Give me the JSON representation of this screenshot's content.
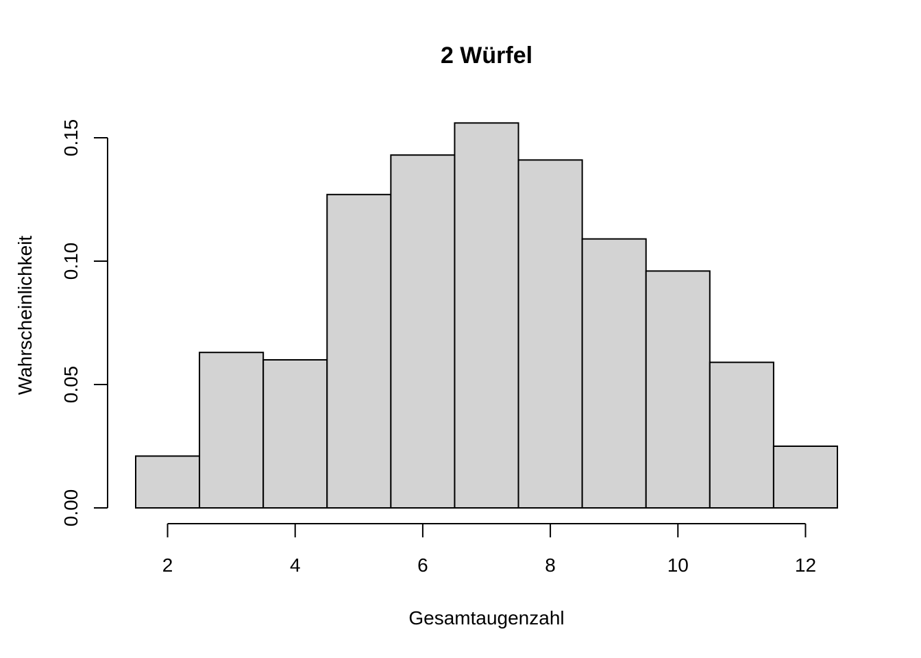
{
  "chart_data": {
    "type": "bar",
    "title": "2 Würfel",
    "xlabel": "Gesamtaugenzahl",
    "ylabel": "Wahrscheinlichkeit",
    "categories": [
      "2",
      "3",
      "4",
      "5",
      "6",
      "7",
      "8",
      "9",
      "10",
      "11",
      "12"
    ],
    "x": [
      2,
      3,
      4,
      5,
      6,
      7,
      8,
      9,
      10,
      11,
      12
    ],
    "values": [
      0.021,
      0.063,
      0.06,
      0.127,
      0.143,
      0.156,
      0.141,
      0.109,
      0.096,
      0.059,
      0.025
    ],
    "xlim": [
      1.5,
      12.5
    ],
    "ylim": [
      0,
      0.15
    ],
    "xticks": [
      2,
      4,
      6,
      8,
      10,
      12
    ],
    "xtick_labels": [
      "2",
      "4",
      "6",
      "8",
      "10",
      "12"
    ],
    "yticks": [
      0,
      0.05,
      0.1,
      0.15
    ],
    "ytick_labels": [
      "0.00",
      "0.05",
      "0.10",
      "0.15"
    ],
    "grid": false,
    "colors": {
      "bar_fill": "#d3d3d3",
      "bar_stroke": "#000000"
    }
  }
}
